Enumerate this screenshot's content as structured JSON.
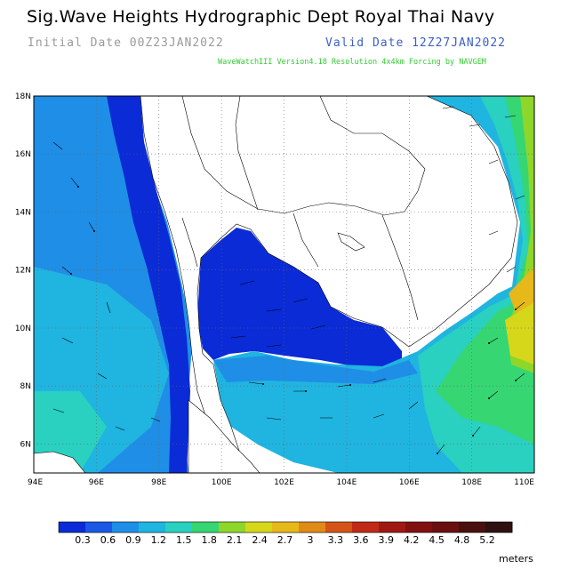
{
  "header": {
    "title": "Sig.Wave Heights Hydrographic Dept Royal Thai Navy",
    "initial_date": "Initial Date 00Z23JAN2022",
    "valid_date": "Valid Date 12Z27JAN2022",
    "model_note": "WaveWatchIII Version4.18 Resolution 4x4km Forcing by NAVGEM"
  },
  "map": {
    "lon_range": [
      94,
      110
    ],
    "lat_range": [
      5,
      18
    ],
    "x_ticks": [
      "94E",
      "96E",
      "98E",
      "100E",
      "102E",
      "104E",
      "106E",
      "108E",
      "110E"
    ],
    "y_ticks": [
      "6N",
      "8N",
      "10N",
      "12N",
      "14N",
      "16N",
      "18N"
    ]
  },
  "colorbar": {
    "units": "meters",
    "labels": [
      "0.3",
      "0.6",
      "0.9",
      "1.2",
      "1.5",
      "1.8",
      "2.1",
      "2.4",
      "2.7",
      "3",
      "3.3",
      "3.6",
      "3.9",
      "4.2",
      "4.5",
      "4.8",
      "5.2"
    ],
    "colors": [
      "#0a2bd6",
      "#1b58e6",
      "#1f8ee6",
      "#20b4e0",
      "#2ad0c0",
      "#36d672",
      "#8ed62a",
      "#d6d61a",
      "#e6b81a",
      "#e08a18",
      "#d45418",
      "#c02a16",
      "#a01812",
      "#821010",
      "#6a1010",
      "#4a1010",
      "#2e1010"
    ]
  }
}
